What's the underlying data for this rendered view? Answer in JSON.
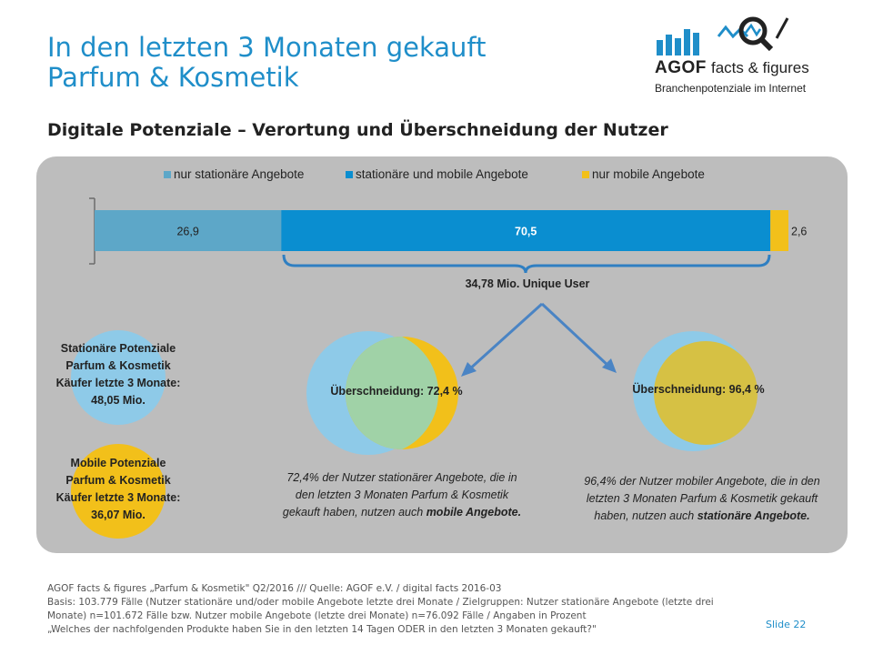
{
  "header": {
    "title_line1": "In den letzten 3 Monaten gekauft",
    "title_line2": "Parfum & Kosmetik",
    "subtitle": "Digitale Potenziale – Verortung und Überschneidung der Nutzer"
  },
  "logo": {
    "brand": "AGOF",
    "tagline": "facts & figures",
    "sub": "Branchenpotenziale im Internet"
  },
  "colors": {
    "nur_stationaer": "#5da7c8",
    "stationaer_mobil": "#0a8ed0",
    "nur_mobil": "#f2c01a",
    "title_blue": "#1f8ec9",
    "panel": "#bdbdbd"
  },
  "chart_data": {
    "type": "bar",
    "orientation": "horizontal-stacked",
    "categories": [
      ""
    ],
    "series": [
      {
        "name": "nur stationäre Angebote",
        "values": [
          26.9
        ],
        "label": "26,9"
      },
      {
        "name": "stationäre und mobile Angebote",
        "values": [
          70.5
        ],
        "label": "70,5"
      },
      {
        "name": "nur mobile Angebote",
        "values": [
          2.6
        ],
        "label": "2,6"
      }
    ],
    "xlim": [
      0,
      100
    ],
    "legend": "top",
    "annotation": "34,78 Mio. Unique User"
  },
  "potentials": {
    "stationary_text": "Stationäre Potenziale Parfum & Kosmetik Käufer letzte 3 Monate:",
    "stationary_value": "48,05 Mio.",
    "mobile_text": "Mobile Potenziale Parfum & Kosmetik Käufer letzte 3 Monate:",
    "mobile_value": "36,07 Mio."
  },
  "overlaps": {
    "left_label": "Überschneidung: 72,4 %",
    "right_label": "Überschneidung: 96,4 %",
    "left_desc": "72,4% der Nutzer stationärer Angebote, die in den letzten 3 Monaten Parfum & Kosmetik gekauft haben, nutzen auch",
    "left_desc_bold": "mobile Angebote.",
    "right_desc": "96,4% der Nutzer mobiler Angebote, die in den letzten 3 Monaten Parfum & Kosmetik gekauft haben, nutzen auch",
    "right_desc_bold": "stationäre Angebote."
  },
  "footer": {
    "line1": "AGOF facts & figures „Parfum & Kosmetik\" Q2/2016 /// Quelle: AGOF e.V. / digital facts 2016-03",
    "line2": "Basis: 103.779 Fälle (Nutzer stationäre und/oder mobile Angebote letzte drei Monate / Zielgruppen: Nutzer stationäre Angebote (letzte drei",
    "line3": "Monate) n=101.672 Fälle bzw. Nutzer mobile Angebote (letzte drei Monate) n=76.092 Fälle / Angaben in Prozent",
    "line4": "„Welches der nachfolgenden Produkte haben Sie in den letzten 14 Tagen ODER in den letzten 3 Monaten gekauft?\"",
    "slide_label": "Slide  22"
  }
}
